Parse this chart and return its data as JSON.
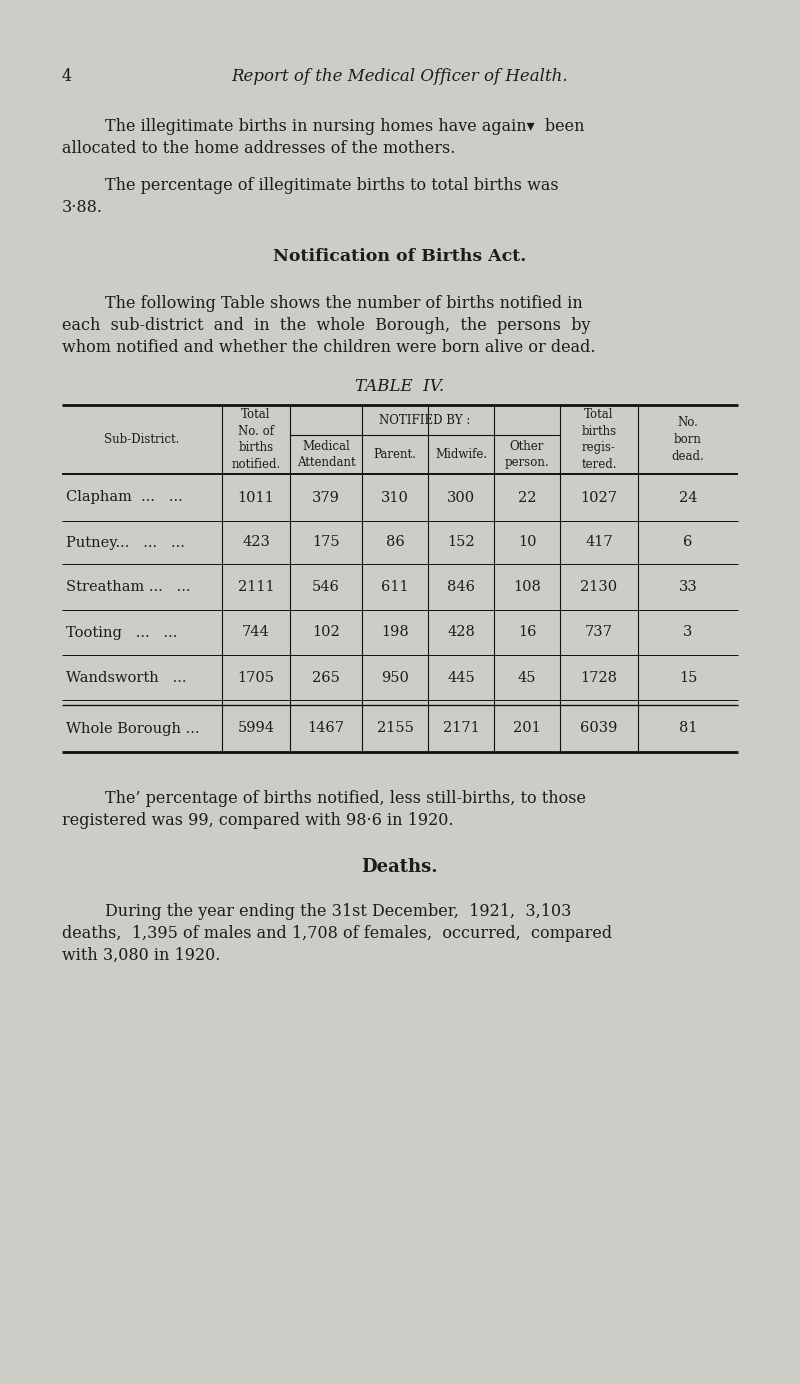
{
  "page_number": "4",
  "title": "Report of the Medical Officer of Health.",
  "bg_color": "#ceccc6",
  "para1_line1": "The illegitimate births in nursing homes have again▾  been",
  "para1_line2": "allocated to the home addresses of the mothers.",
  "para2_line1": "The percentage of illegitimate births to total births was",
  "para2_line2": "3·88.",
  "section_heading": "Notification of Births Act.",
  "para3_line1": "The following Table shows the number of births notified in",
  "para3_line2": "each  sub-district  and  in  the  whole  Borough,  the  persons  by",
  "para3_line3": "whom notified and whether the children were born alive or dead.",
  "table_title": "TABLE  IV.",
  "rows": [
    [
      "Clapham  ...   ...",
      "1011",
      "379",
      "310",
      "300",
      "22",
      "1027",
      "24"
    ],
    [
      "Putney...   ...   ...",
      "423",
      "175",
      "86",
      "152",
      "10",
      "417",
      "6"
    ],
    [
      "Streatham ...   ...",
      "2111",
      "546",
      "611",
      "846",
      "108",
      "2130",
      "33"
    ],
    [
      "Tooting   ...   ...",
      "744",
      "102",
      "198",
      "428",
      "16",
      "737",
      "3"
    ],
    [
      "Wandsworth   ...",
      "1705",
      "265",
      "950",
      "445",
      "45",
      "1728",
      "15"
    ]
  ],
  "total_row": [
    "Whole Borough ...",
    "5994",
    "1467",
    "2155",
    "2171",
    "201",
    "6039",
    "81"
  ],
  "para4_line1": "The’ percentage of births notified, less still-births, to those",
  "para4_line2": "registered was 99, compared with 98·6 in 1920.",
  "deaths_heading": "Deaths.",
  "para5_line1": "During the year ending the 31st December,  1921,  3,103",
  "para5_line2": "deaths,  1,395 of males and 1,708 of females,  occurred,  compared",
  "para5_line3": "with 3,080 in 1920."
}
